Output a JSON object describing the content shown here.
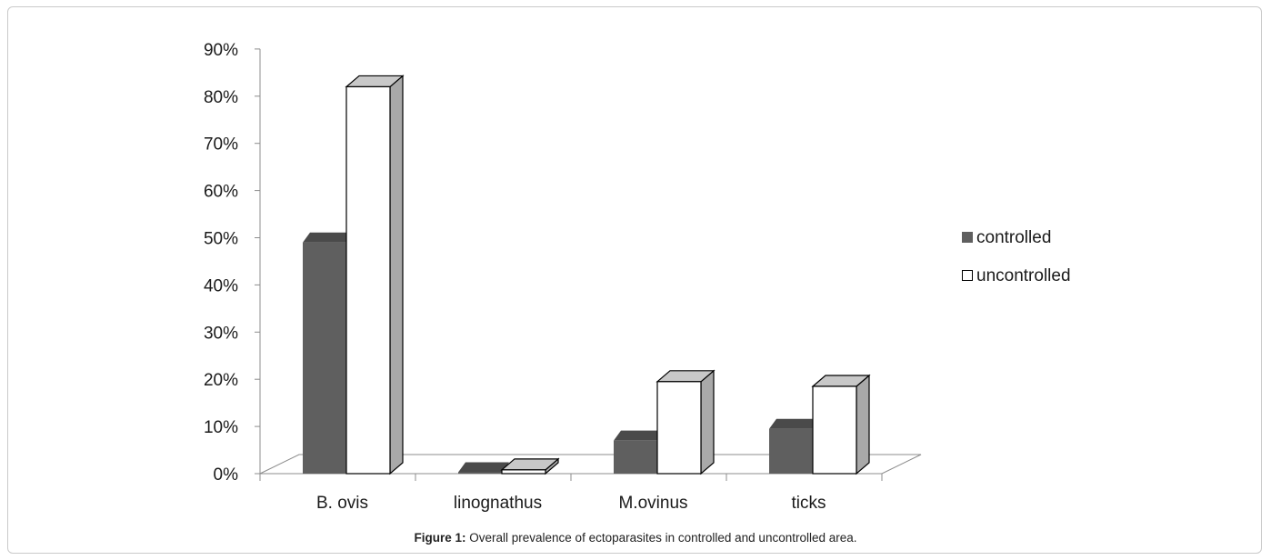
{
  "figure": {
    "caption_label": "Figure 1:",
    "caption_text": " Overall prevalence of ectoparasites in controlled and uncontrolled area."
  },
  "chart_data": {
    "type": "bar",
    "style": "3d-clustered-column",
    "categories": [
      "B. ovis",
      "linognathus",
      "M.ovinus",
      "ticks"
    ],
    "series": [
      {
        "name": "controlled",
        "values": [
          49,
          0.3,
          7,
          9.5
        ],
        "color": "#5f5f5f"
      },
      {
        "name": "uncontrolled",
        "values": [
          82,
          0.8,
          19.5,
          18.5
        ],
        "color": "#ffffff"
      }
    ],
    "y_ticks": [
      "0%",
      "10%",
      "20%",
      "30%",
      "40%",
      "50%",
      "60%",
      "70%",
      "80%",
      "90%"
    ],
    "ylim": [
      0,
      90
    ],
    "y_unit": "%",
    "grid": false,
    "legend_position": "right",
    "title": "",
    "xlabel": "",
    "ylabel": ""
  }
}
